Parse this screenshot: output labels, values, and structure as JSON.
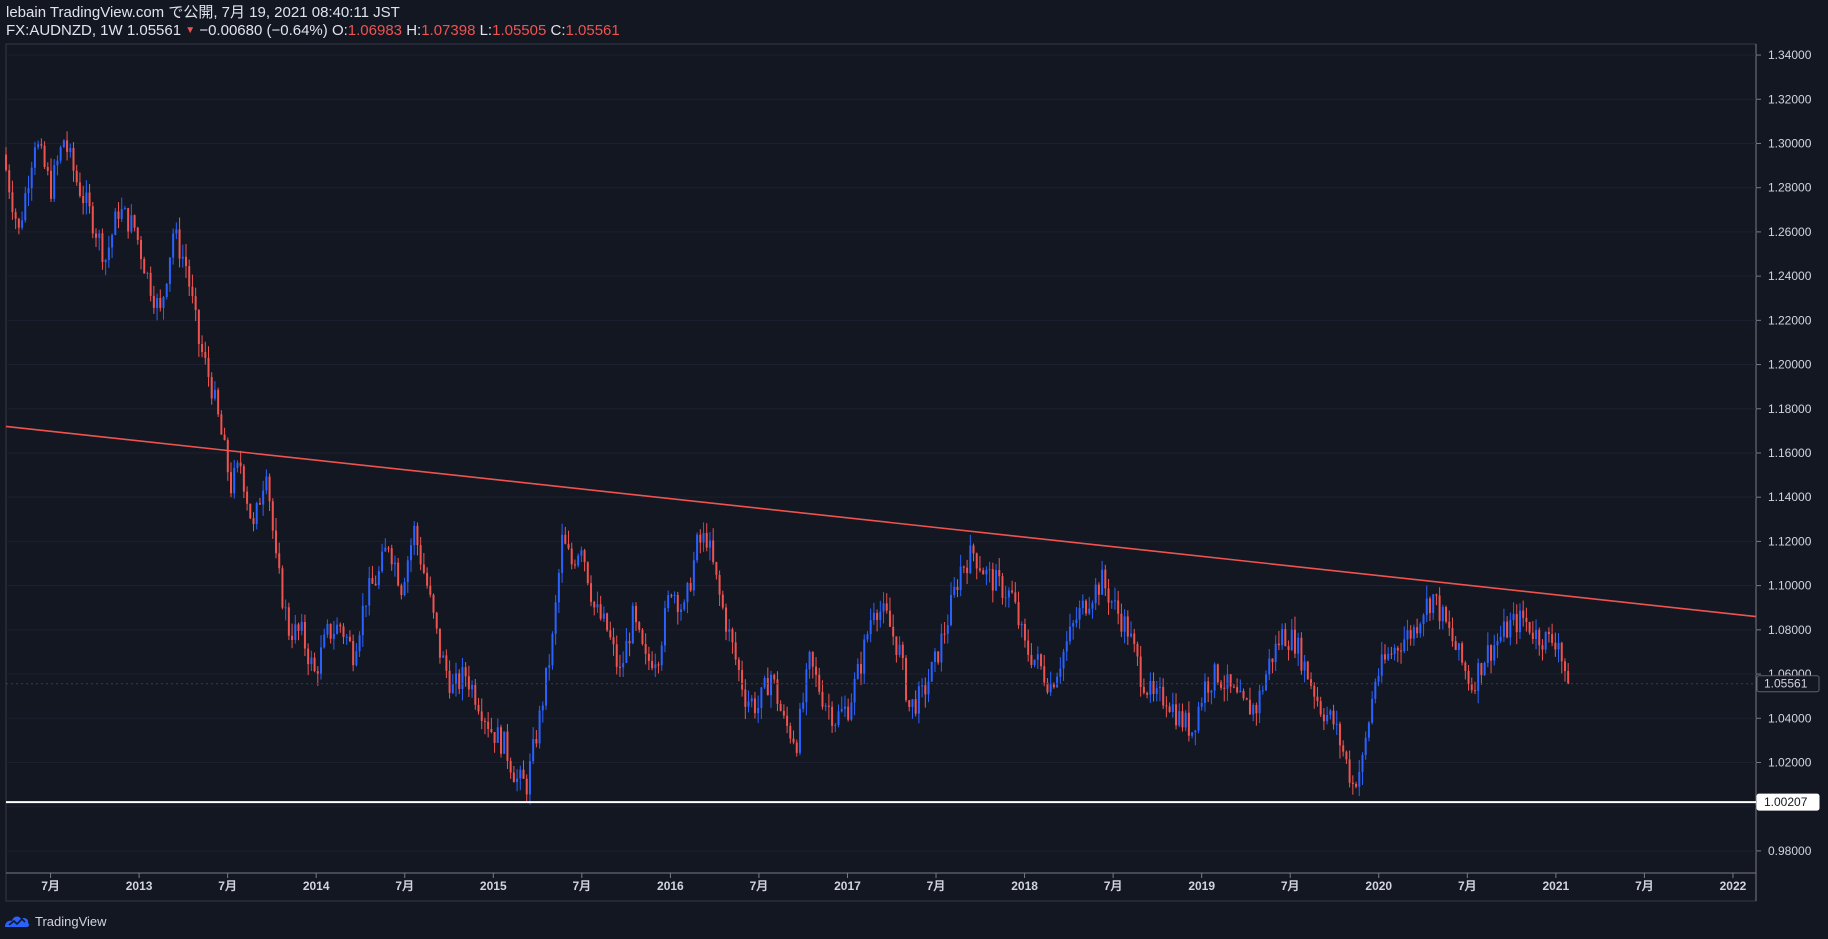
{
  "header": {
    "publish_line": "lebain TradingView.com で公開, 7月 19, 2021 08:40:11 JST",
    "symbol": "FX:AUDNZD, 1W",
    "last": "1.05561",
    "change": "−0.00680 (−0.64%)",
    "o_label": "O:",
    "o_value": "1.06983",
    "h_label": "H:",
    "h_value": "1.07398",
    "l_label": "L:",
    "l_value": "1.05505",
    "c_label": "C:",
    "c_value": "1.05561"
  },
  "footer": {
    "brand": "TradingView",
    "icon": "tradingview-logo-icon"
  },
  "colors": {
    "background": "#131722",
    "up": "#2962ff",
    "down": "#ef5350",
    "trendline": "#ef5350",
    "support": "#ffffff",
    "axis_text": "#d1d4dc"
  },
  "chart_data": {
    "type": "candlestick",
    "symbol": "FX:AUDNZD",
    "interval": "1W",
    "ylim": [
      0.97,
      1.345
    ],
    "y_ticks": [
      "1.34000",
      "1.32000",
      "1.30000",
      "1.28000",
      "1.26000",
      "1.24000",
      "1.22000",
      "1.20000",
      "1.18000",
      "1.16000",
      "1.14000",
      "1.12000",
      "1.10000",
      "1.08000",
      "1.06000",
      "1.04000",
      "1.02000",
      "1.00000",
      "0.98000"
    ],
    "x_ticks": [
      "7月",
      "2013",
      "7月",
      "2014",
      "7月",
      "2015",
      "7月",
      "2016",
      "7月",
      "2017",
      "7月",
      "2018",
      "7月",
      "2019",
      "7月",
      "2020",
      "7月",
      "2021",
      "7月",
      "2022"
    ],
    "x_range": [
      "2012-03-26",
      "2022-09-01"
    ],
    "price_labels": [
      {
        "value": "1.05561",
        "price": 1.05561,
        "style": "last"
      },
      {
        "value": "1.00207",
        "price": 1.00207,
        "style": "level"
      }
    ],
    "support_line": 1.00207,
    "trendline": {
      "from": [
        "2012-03-26",
        1.172
      ],
      "to": [
        "2022-09-01",
        1.086
      ]
    },
    "path": [
      [
        "2012-03-26",
        1.295
      ],
      [
        "2012-04-30",
        1.26
      ],
      [
        "2012-06-04",
        1.302
      ],
      [
        "2012-07-09",
        1.28
      ],
      [
        "2012-08-06",
        1.302
      ],
      [
        "2012-09-03",
        1.283
      ],
      [
        "2012-10-08",
        1.265
      ],
      [
        "2012-11-05",
        1.248
      ],
      [
        "2012-12-03",
        1.27
      ],
      [
        "2013-01-07",
        1.262
      ],
      [
        "2013-02-04",
        1.24
      ],
      [
        "2013-03-04",
        1.223
      ],
      [
        "2013-04-01",
        1.26
      ],
      [
        "2013-04-29",
        1.245
      ],
      [
        "2013-05-27",
        1.21
      ],
      [
        "2013-06-24",
        1.19
      ],
      [
        "2013-07-15",
        1.168
      ],
      [
        "2013-08-05",
        1.145
      ],
      [
        "2013-08-26",
        1.155
      ],
      [
        "2013-09-23",
        1.125
      ],
      [
        "2013-10-21",
        1.155
      ],
      [
        "2013-11-11",
        1.11
      ],
      [
        "2013-12-09",
        1.08
      ],
      [
        "2014-01-06",
        1.078
      ],
      [
        "2014-02-03",
        1.06
      ],
      [
        "2014-03-03",
        1.078
      ],
      [
        "2014-03-31",
        1.082
      ],
      [
        "2014-04-28",
        1.07
      ],
      [
        "2014-05-26",
        1.095
      ],
      [
        "2014-06-23",
        1.105
      ],
      [
        "2014-07-14",
        1.12
      ],
      [
        "2014-08-11",
        1.1
      ],
      [
        "2014-09-08",
        1.125
      ],
      [
        "2014-10-06",
        1.1
      ],
      [
        "2014-11-03",
        1.07
      ],
      [
        "2014-12-01",
        1.053
      ],
      [
        "2014-12-29",
        1.06
      ],
      [
        "2015-01-26",
        1.048
      ],
      [
        "2015-02-23",
        1.035
      ],
      [
        "2015-03-23",
        1.028
      ],
      [
        "2015-04-20",
        1.012
      ],
      [
        "2015-05-11",
        1.01
      ],
      [
        "2015-06-08",
        1.04
      ],
      [
        "2015-07-06",
        1.075
      ],
      [
        "2015-07-27",
        1.12
      ],
      [
        "2015-08-17",
        1.11
      ],
      [
        "2015-09-07",
        1.12
      ],
      [
        "2015-10-05",
        1.09
      ],
      [
        "2015-11-02",
        1.08
      ],
      [
        "2015-11-30",
        1.06
      ],
      [
        "2015-12-28",
        1.085
      ],
      [
        "2016-01-25",
        1.065
      ],
      [
        "2016-02-22",
        1.07
      ],
      [
        "2016-03-21",
        1.1
      ],
      [
        "2016-04-18",
        1.088
      ],
      [
        "2016-05-16",
        1.118
      ],
      [
        "2016-06-06",
        1.122
      ],
      [
        "2016-07-04",
        1.095
      ],
      [
        "2016-08-01",
        1.072
      ],
      [
        "2016-08-29",
        1.05
      ],
      [
        "2016-09-26",
        1.045
      ],
      [
        "2016-10-24",
        1.06
      ],
      [
        "2016-11-21",
        1.038
      ],
      [
        "2016-12-19",
        1.03
      ],
      [
        "2017-01-16",
        1.065
      ],
      [
        "2017-02-13",
        1.05
      ],
      [
        "2017-03-13",
        1.04
      ],
      [
        "2017-04-10",
        1.045
      ],
      [
        "2017-05-08",
        1.065
      ],
      [
        "2017-06-05",
        1.092
      ],
      [
        "2017-07-03",
        1.085
      ],
      [
        "2017-07-31",
        1.07
      ],
      [
        "2017-08-21",
        1.045
      ],
      [
        "2017-09-18",
        1.05
      ],
      [
        "2017-10-16",
        1.065
      ],
      [
        "2017-11-13",
        1.085
      ],
      [
        "2017-12-11",
        1.108
      ],
      [
        "2018-01-08",
        1.115
      ],
      [
        "2018-02-05",
        1.105
      ],
      [
        "2018-03-05",
        1.1
      ],
      [
        "2018-04-02",
        1.095
      ],
      [
        "2018-04-30",
        1.072
      ],
      [
        "2018-05-28",
        1.065
      ],
      [
        "2018-06-25",
        1.055
      ],
      [
        "2018-07-23",
        1.07
      ],
      [
        "2018-08-20",
        1.085
      ],
      [
        "2018-09-17",
        1.095
      ],
      [
        "2018-10-15",
        1.102
      ],
      [
        "2018-11-12",
        1.09
      ],
      [
        "2018-12-10",
        1.08
      ],
      [
        "2019-01-07",
        1.06
      ],
      [
        "2019-02-04",
        1.048
      ],
      [
        "2019-03-04",
        1.05
      ],
      [
        "2019-04-01",
        1.04
      ],
      [
        "2019-04-29",
        1.035
      ],
      [
        "2019-05-27",
        1.055
      ],
      [
        "2019-06-24",
        1.06
      ],
      [
        "2019-07-22",
        1.052
      ],
      [
        "2019-08-19",
        1.045
      ],
      [
        "2019-09-16",
        1.045
      ],
      [
        "2019-10-14",
        1.065
      ],
      [
        "2019-11-11",
        1.078
      ],
      [
        "2019-12-09",
        1.075
      ],
      [
        "2020-01-06",
        1.06
      ],
      [
        "2020-02-03",
        1.045
      ],
      [
        "2020-03-02",
        1.038
      ],
      [
        "2020-03-23",
        1.025
      ],
      [
        "2020-04-13",
        1.01
      ],
      [
        "2020-05-04",
        1.02
      ],
      [
        "2020-06-01",
        1.058
      ],
      [
        "2020-06-29",
        1.068
      ],
      [
        "2020-07-27",
        1.075
      ],
      [
        "2020-08-24",
        1.08
      ],
      [
        "2020-09-14",
        1.09
      ],
      [
        "2020-10-05",
        1.095
      ],
      [
        "2020-11-02",
        1.082
      ],
      [
        "2020-11-30",
        1.068
      ],
      [
        "2020-12-28",
        1.055
      ],
      [
        "2021-01-25",
        1.068
      ],
      [
        "2021-02-22",
        1.075
      ],
      [
        "2021-03-22",
        1.082
      ],
      [
        "2021-04-19",
        1.085
      ],
      [
        "2021-05-17",
        1.078
      ],
      [
        "2021-06-14",
        1.075
      ],
      [
        "2021-07-05",
        1.076
      ],
      [
        "2021-07-19",
        1.056
      ]
    ]
  }
}
